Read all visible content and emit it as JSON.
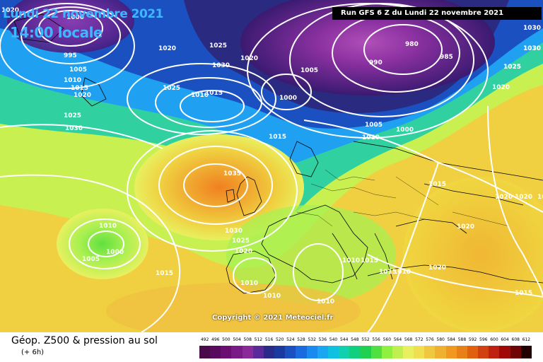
{
  "header": {
    "date_label": "Lundi 22 novembre 2021",
    "time_label": "14:00 locale",
    "run_label": "Run GFS 6 Z du Lundi 22 novembre 2021"
  },
  "copyright": "Copyright © 2021 Meteociel.fr",
  "legend": {
    "title": "Géop. Z500 & pression au sol",
    "subtitle": "(+ 6h)",
    "scale_values": [
      "492",
      "496",
      "500",
      "504",
      "508",
      "512",
      "516",
      "520",
      "524",
      "528",
      "532",
      "536",
      "540",
      "544",
      "548",
      "552",
      "556",
      "560",
      "564",
      "568",
      "572",
      "576",
      "580",
      "584",
      "588",
      "592",
      "596",
      "600",
      "604",
      "608",
      "612"
    ],
    "scale_colors": [
      "#4a0a4a",
      "#5a0a5e",
      "#6a0e72",
      "#7a1a86",
      "#8a2a9a",
      "#5a2a9a",
      "#2a2a8a",
      "#1a3aa0",
      "#1a50c0",
      "#1a6ae0",
      "#1a8af0",
      "#1aa6f0",
      "#10c0e0",
      "#10d0b0",
      "#10d080",
      "#20d050",
      "#50e040",
      "#90f040",
      "#c0f050",
      "#e8f060",
      "#f0e050",
      "#f0c840",
      "#f0b030",
      "#f09820",
      "#e88018",
      "#e06010",
      "#d04010",
      "#c02010",
      "#a00808",
      "#700404",
      "#200000"
    ]
  },
  "map": {
    "isobar_labels": [
      {
        "text": "1020"
      },
      {
        "text": "1000"
      },
      {
        "text": "995"
      },
      {
        "text": "1005"
      },
      {
        "text": "1010"
      },
      {
        "text": "1015"
      },
      {
        "text": "1020"
      },
      {
        "text": "1025"
      },
      {
        "text": "1030"
      },
      {
        "text": "1020"
      },
      {
        "text": "1025"
      },
      {
        "text": "1030"
      },
      {
        "text": "1020"
      },
      {
        "text": "1025"
      },
      {
        "text": "1010"
      },
      {
        "text": "1015"
      },
      {
        "text": "1005"
      },
      {
        "text": "1000"
      },
      {
        "text": "995"
      },
      {
        "text": "980"
      },
      {
        "text": "990"
      },
      {
        "text": "985"
      },
      {
        "text": "1005"
      },
      {
        "text": "1010"
      },
      {
        "text": "1000"
      },
      {
        "text": "1015"
      },
      {
        "text": "1025"
      },
      {
        "text": "1020"
      },
      {
        "text": "1030"
      },
      {
        "text": "1035"
      },
      {
        "text": "1030"
      },
      {
        "text": "1025"
      },
      {
        "text": "1020"
      },
      {
        "text": "1015"
      },
      {
        "text": "1010"
      },
      {
        "text": "1010"
      },
      {
        "text": "1005"
      },
      {
        "text": "1000"
      },
      {
        "text": "1015"
      },
      {
        "text": "1010"
      },
      {
        "text": "1010"
      },
      {
        "text": "1010"
      },
      {
        "text": "1010"
      },
      {
        "text": "1015"
      },
      {
        "text": "1020"
      },
      {
        "text": "1015"
      },
      {
        "text": "1020"
      },
      {
        "text": "1020"
      },
      {
        "text": "1020"
      },
      {
        "text": "1015"
      },
      {
        "text": "1030"
      },
      {
        "text": "1030"
      },
      {
        "text": "1025"
      },
      {
        "text": "1020"
      }
    ]
  }
}
